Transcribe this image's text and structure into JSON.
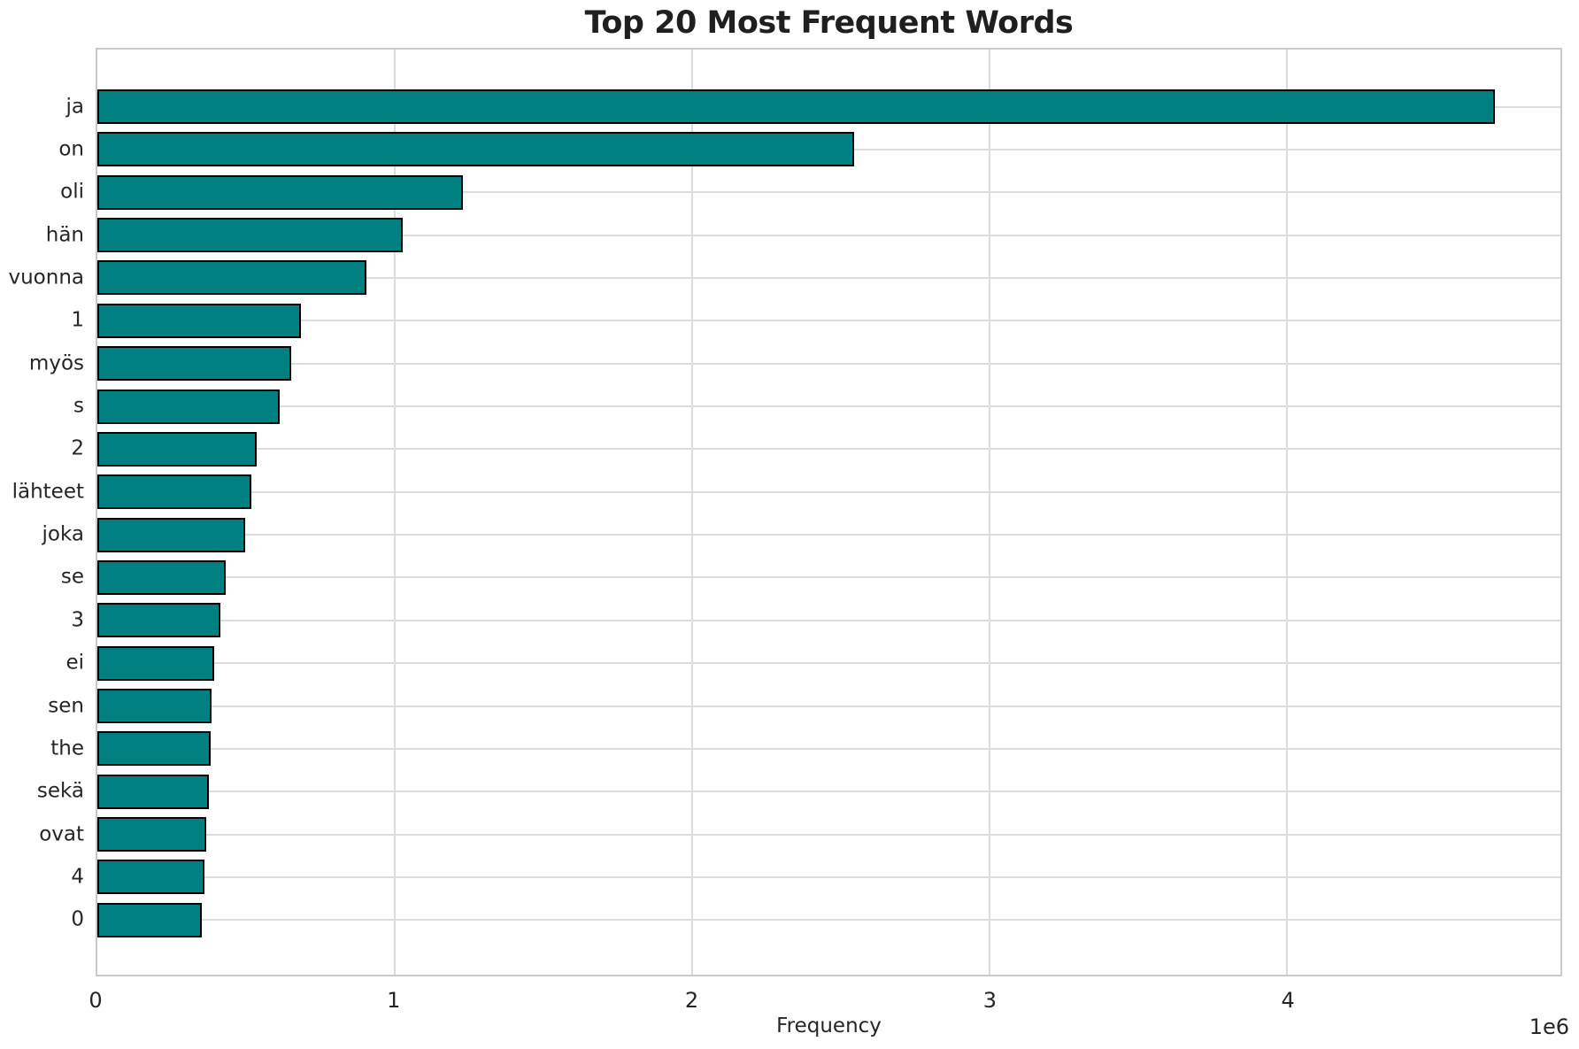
{
  "colors": {
    "bar": "#008080",
    "bar_edge": "#000000",
    "grid": "#dcdcdc",
    "spine": "#c9c9c9",
    "text": "#262626",
    "background": "#ffffff"
  },
  "chart_data": {
    "type": "bar",
    "orientation": "horizontal",
    "title": "Top 20 Most Frequent Words",
    "xlabel": "Frequency",
    "ylabel": "",
    "offset_text": "1e6",
    "grid": true,
    "legend": null,
    "xlim": [
      0,
      4920000
    ],
    "categories": [
      "ja",
      "on",
      "oli",
      "hän",
      "vuonna",
      "1",
      "myös",
      "s",
      "2",
      "lähteet",
      "joka",
      "se",
      "3",
      "ei",
      "sen",
      "the",
      "sekä",
      "ovat",
      "4",
      "0"
    ],
    "values": [
      4700000,
      2546000,
      1229000,
      1027000,
      905000,
      686000,
      653000,
      614000,
      537000,
      518000,
      498000,
      433000,
      415000,
      393000,
      383000,
      381000,
      375000,
      365000,
      359000,
      350000
    ],
    "x_ticks": [
      {
        "value": 0,
        "label": "0"
      },
      {
        "value": 1000000,
        "label": "1"
      },
      {
        "value": 2000000,
        "label": "2"
      },
      {
        "value": 3000000,
        "label": "3"
      },
      {
        "value": 4000000,
        "label": "4"
      }
    ]
  }
}
